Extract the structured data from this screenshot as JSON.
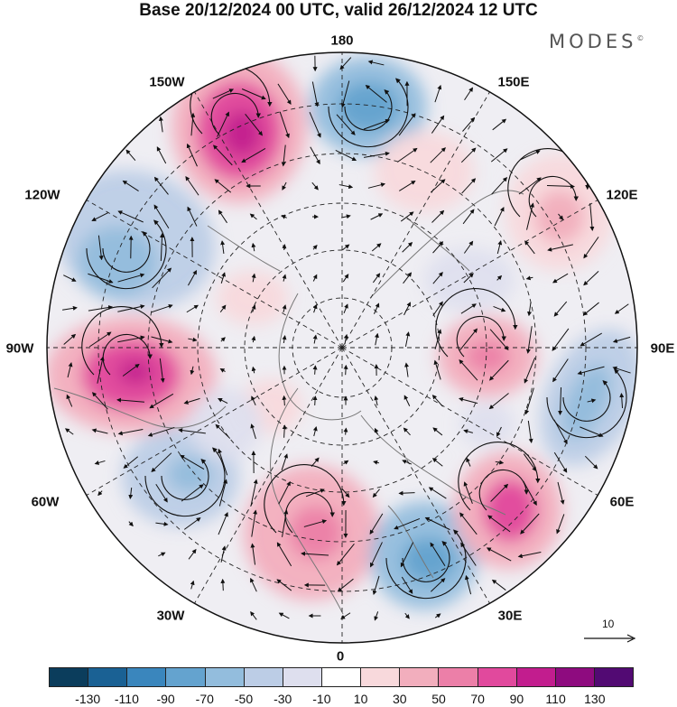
{
  "title": "Base 20/12/2024 00 UTC, valid 26/12/2024 12 UTC",
  "brand": "MODES",
  "brand_mark": "©",
  "longitude_labels": {
    "top": "180",
    "top_left": "150W",
    "top_right": "150E",
    "upper_left": "120W",
    "upper_right": "120E",
    "left": "90W",
    "right": "90E",
    "lower_left": "60W",
    "lower_right": "60E",
    "bottom_left": "30W",
    "bottom_right": "30E",
    "bottom": "0"
  },
  "vector_scale": {
    "value": "10"
  },
  "colorbar": {
    "colors": [
      "#0b3d5c",
      "#1a6194",
      "#3a86bd",
      "#64a3cf",
      "#93bddd",
      "#bccde6",
      "#dedfee",
      "#ffffff",
      "#f8d9dc",
      "#f2aebd",
      "#ec7fa8",
      "#e1499d",
      "#c21d8e",
      "#8e0b7f",
      "#520a73"
    ],
    "ticks": [
      "-130",
      "-110",
      "-90",
      "-70",
      "-50",
      "-30",
      "-10",
      "10",
      "30",
      "50",
      "70",
      "90",
      "110",
      "130"
    ]
  }
}
